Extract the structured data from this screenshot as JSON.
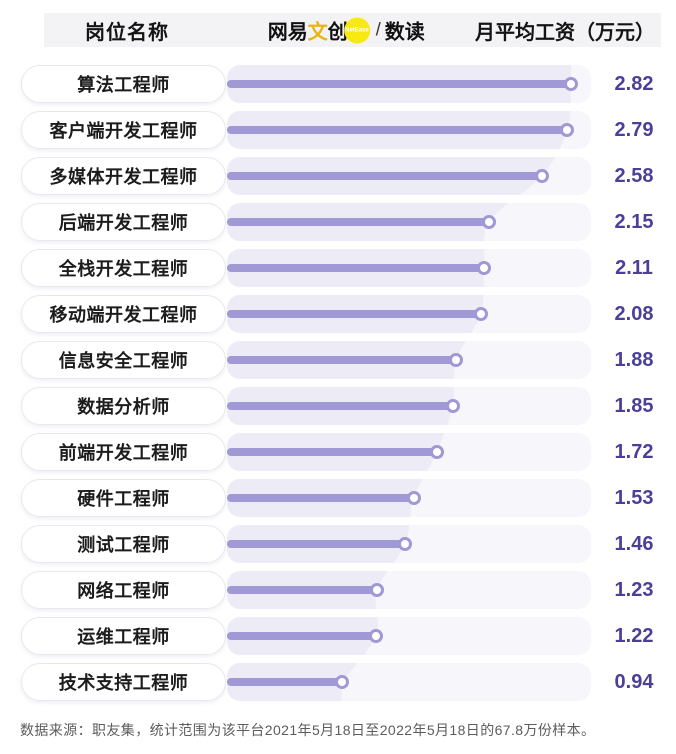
{
  "header": {
    "left_title": "岗位名称",
    "right_title": "月平均工资（万元）",
    "logo": {
      "brand_prefix": "网易",
      "brand_accent": "文",
      "brand_suffix": "创",
      "badge_text": "NetEase",
      "divider": "/",
      "product": "数读"
    }
  },
  "chart_data": {
    "type": "bar",
    "orientation": "horizontal",
    "title": "",
    "col_header_left": "岗位名称",
    "col_header_right": "月平均工资（万元）",
    "categories": [
      "算法工程师",
      "客户端开发工程师",
      "多媒体开发工程师",
      "后端开发工程师",
      "全栈开发工程师",
      "移动端开发工程师",
      "信息安全工程师",
      "数据分析师",
      "前端开发工程师",
      "硬件工程师",
      "测试工程师",
      "网络工程师",
      "运维工程师",
      "技术支持工程师"
    ],
    "values": [
      2.82,
      2.79,
      2.58,
      2.15,
      2.11,
      2.08,
      1.88,
      1.85,
      1.72,
      1.53,
      1.46,
      1.23,
      1.22,
      0.94
    ],
    "unit": "万元",
    "xlim": [
      0,
      3
    ],
    "grid": false,
    "legend": false
  },
  "footer": {
    "source_note": "数据来源：职友集，统计范围为该平台2021年5月18日至2022年5月18日的67.8万份样本。"
  },
  "colors": {
    "bar": "#a198d6",
    "track": "#edecf6",
    "value_text": "#4b4098",
    "header_band": "#f3f3f6",
    "badge_yellow": "#f6ea10",
    "brand_gold": "#e9b50e",
    "footer_text": "#5c5c5c",
    "overlay_white": "rgba(255,255,255,0.55)"
  }
}
